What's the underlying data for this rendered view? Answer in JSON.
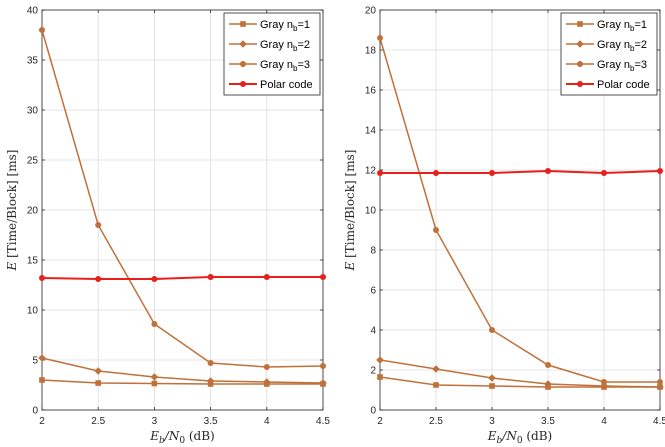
{
  "chart_data": [
    {
      "type": "line",
      "xlabel": "E_b/N_0 (dB)",
      "ylabel": "E [Time/Block] [ms]",
      "xlim": [
        2,
        4.5
      ],
      "ylim": [
        0,
        40
      ],
      "x_ticks": [
        "2",
        "2.5",
        "3",
        "3.5",
        "4",
        "4.5"
      ],
      "y_ticks": [
        "0",
        "5",
        "10",
        "15",
        "20",
        "25",
        "30",
        "35",
        "40"
      ],
      "grid": true,
      "legend_position": "top-right",
      "x": [
        2,
        2.5,
        3,
        3.5,
        4,
        4.5
      ],
      "series": [
        {
          "name": "Gray n_b=1",
          "legend_main": "Gray n",
          "legend_sub": "b",
          "legend_tail": "=1",
          "marker": "square",
          "color": "#c0703a",
          "values": [
            3.0,
            2.7,
            2.65,
            2.6,
            2.6,
            2.6
          ]
        },
        {
          "name": "Gray n_b=2",
          "legend_main": "Gray n",
          "legend_sub": "b",
          "legend_tail": "=2",
          "marker": "diamond",
          "color": "#c0703a",
          "values": [
            5.2,
            3.9,
            3.3,
            2.9,
            2.8,
            2.7
          ]
        },
        {
          "name": "Gray n_b=3",
          "legend_main": "Gray n",
          "legend_sub": "b",
          "legend_tail": "=3",
          "marker": "circle",
          "color": "#c0703a",
          "values": [
            38.0,
            18.5,
            8.6,
            4.7,
            4.3,
            4.4
          ]
        },
        {
          "name": "Polar code",
          "legend_main": "Polar code",
          "legend_sub": "",
          "legend_tail": "",
          "marker": "circle",
          "color": "#e8201c",
          "values": [
            13.2,
            13.1,
            13.1,
            13.3,
            13.3,
            13.3
          ]
        }
      ]
    },
    {
      "type": "line",
      "xlabel": "E_b/N_0 (dB)",
      "ylabel": "E [Time/Block] [ms]",
      "xlim": [
        2,
        4.5
      ],
      "ylim": [
        0,
        20
      ],
      "x_ticks": [
        "2",
        "2.5",
        "3",
        "3.5",
        "4",
        "4.5"
      ],
      "y_ticks": [
        "0",
        "2",
        "4",
        "6",
        "8",
        "10",
        "12",
        "14",
        "16",
        "18",
        "20"
      ],
      "grid": true,
      "legend_position": "top-right",
      "x": [
        2,
        2.5,
        3,
        3.5,
        4,
        4.5
      ],
      "series": [
        {
          "name": "Gray n_b=1",
          "legend_main": "Gray n",
          "legend_sub": "b",
          "legend_tail": "=1",
          "marker": "square",
          "color": "#c0703a",
          "values": [
            1.65,
            1.25,
            1.2,
            1.15,
            1.15,
            1.15
          ]
        },
        {
          "name": "Gray n_b=2",
          "legend_main": "Gray n",
          "legend_sub": "b",
          "legend_tail": "=2",
          "marker": "diamond",
          "color": "#c0703a",
          "values": [
            2.5,
            2.05,
            1.6,
            1.3,
            1.2,
            1.15
          ]
        },
        {
          "name": "Gray n_b=3",
          "legend_main": "Gray n",
          "legend_sub": "b",
          "legend_tail": "=3",
          "marker": "circle",
          "color": "#c0703a",
          "values": [
            18.6,
            9.0,
            4.0,
            2.25,
            1.4,
            1.4
          ]
        },
        {
          "name": "Polar code",
          "legend_main": "Polar code",
          "legend_sub": "",
          "legend_tail": "",
          "marker": "circle",
          "color": "#e8201c",
          "values": [
            11.85,
            11.85,
            11.85,
            11.95,
            11.85,
            11.95
          ]
        }
      ]
    }
  ]
}
